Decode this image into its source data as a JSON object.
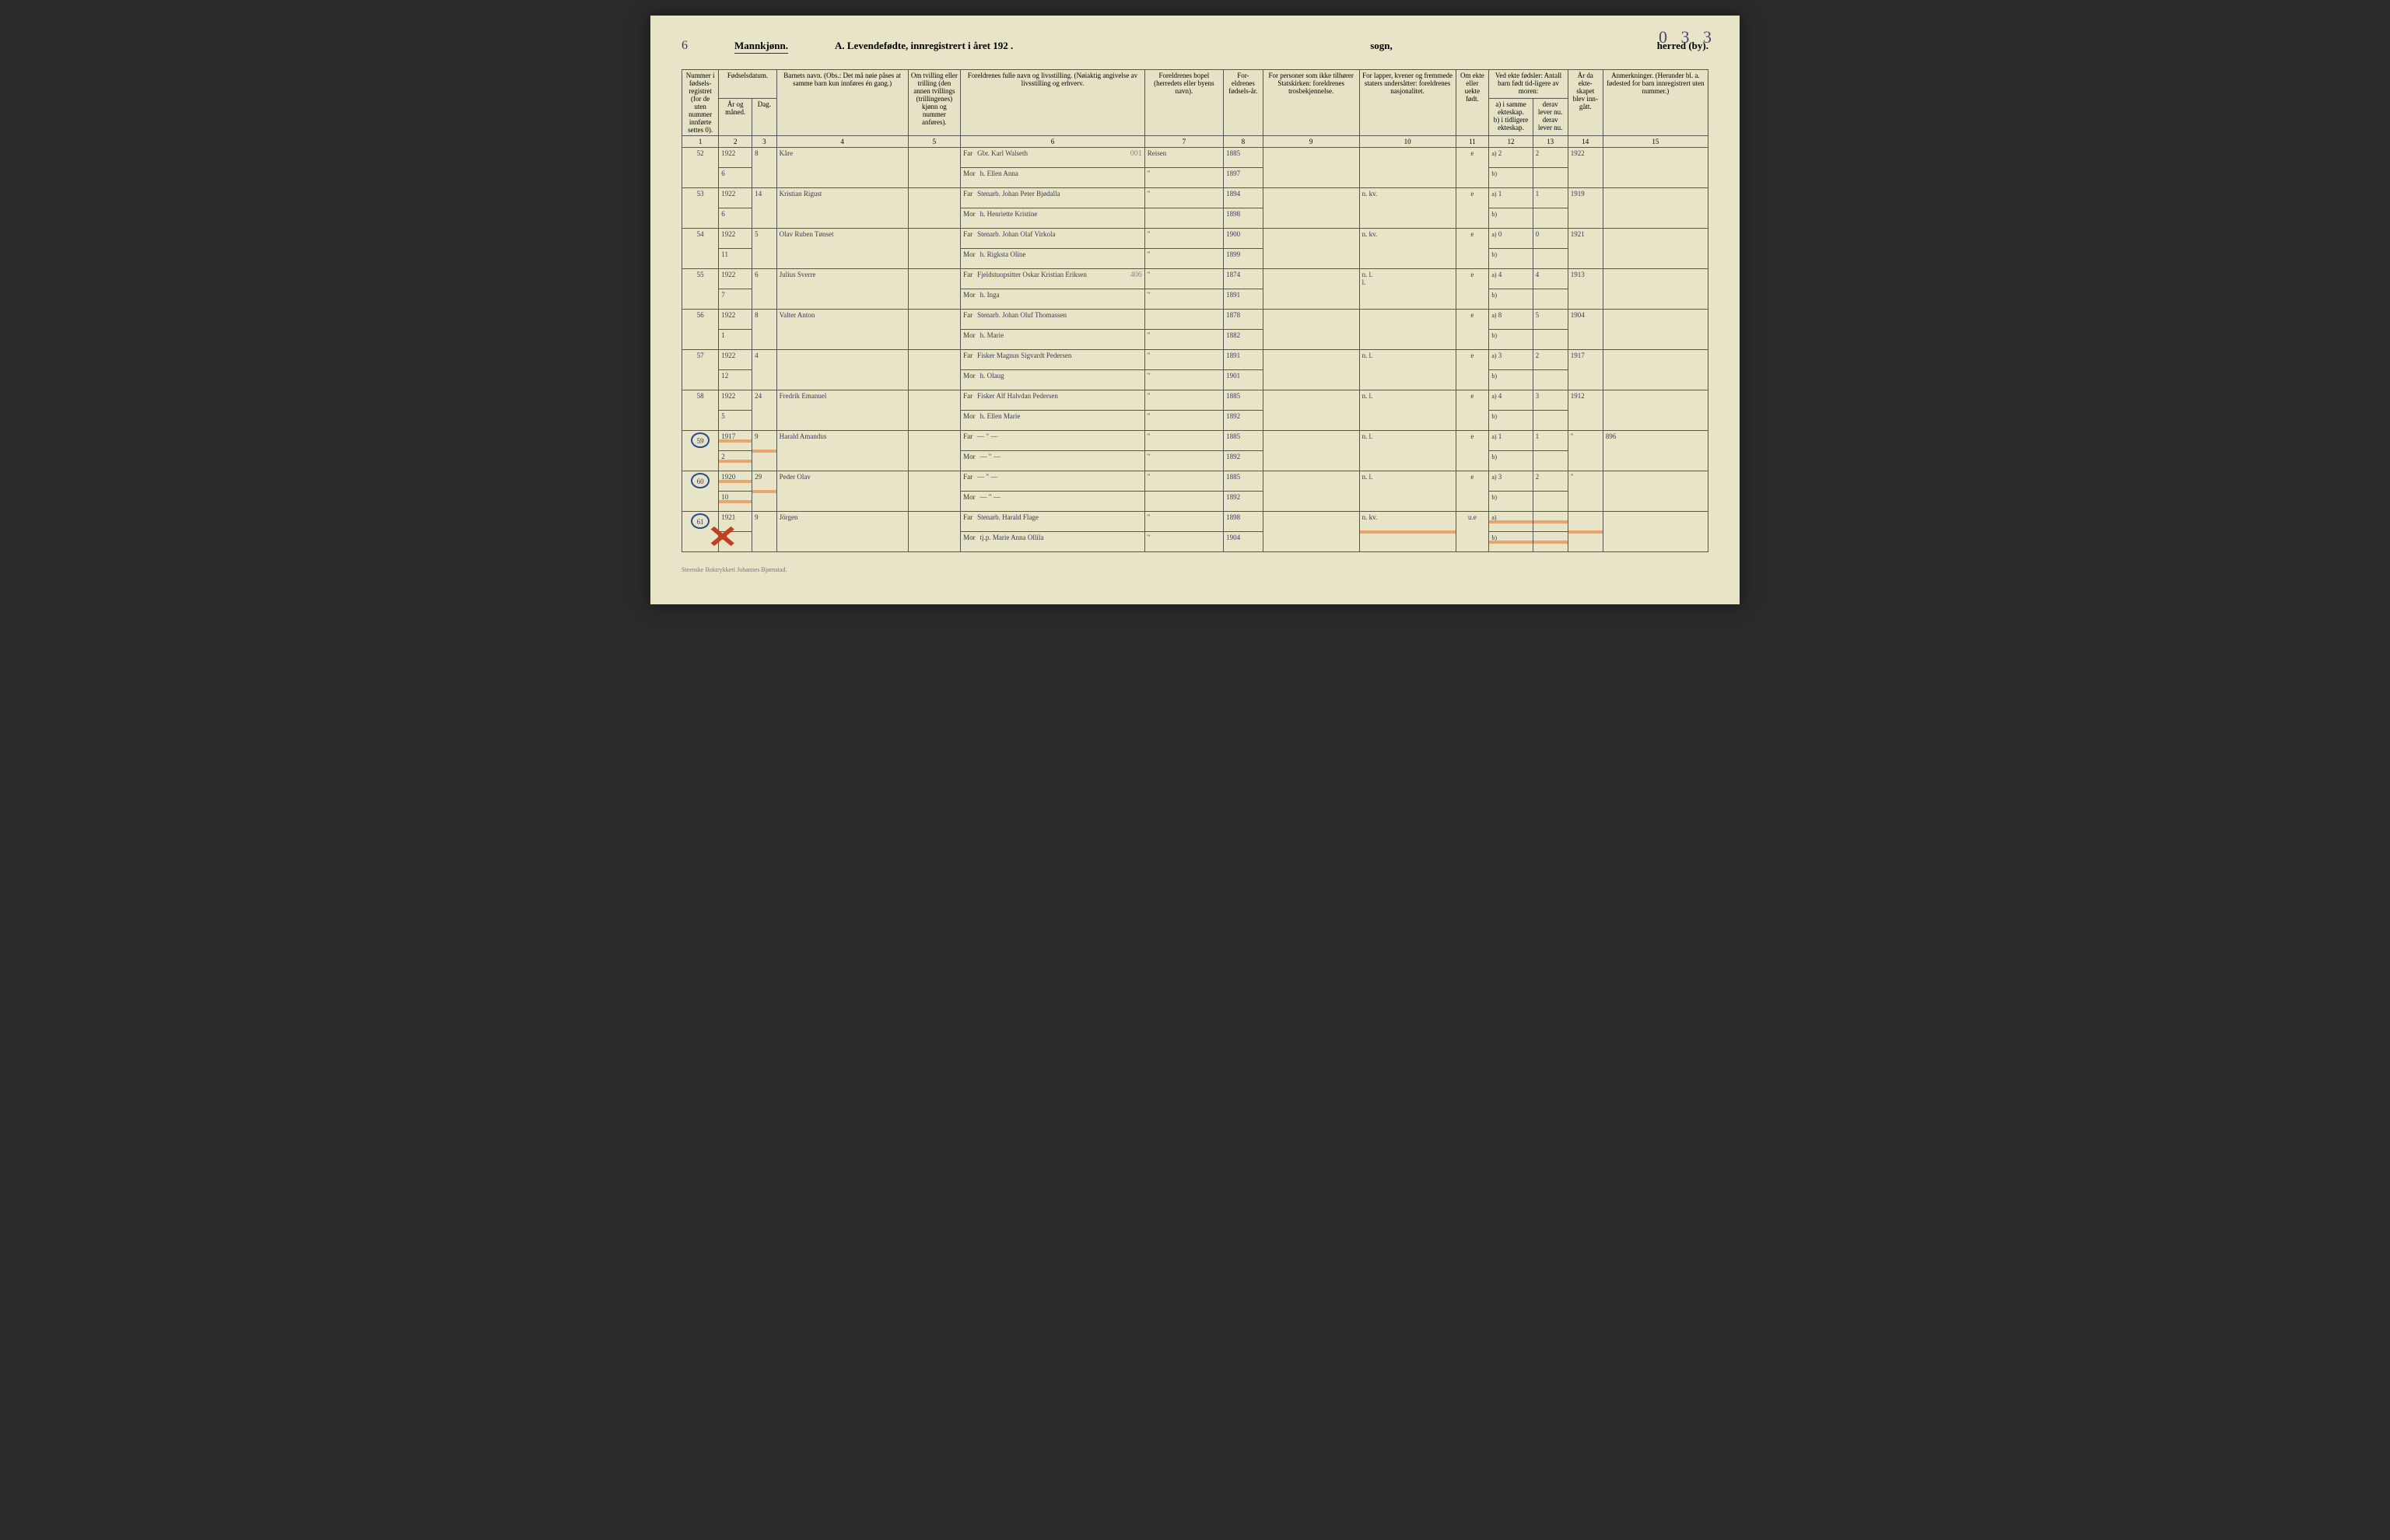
{
  "cornerNumber": "0 3 3",
  "leftNum": "6",
  "genderLabel": "Mannkjønn.",
  "mainTitle": "A.  Levendefødte, innregistrert i året 192  .",
  "sognLabel": "sogn,",
  "herredLabel": "herred (by).",
  "footerPrint": "Steenske Boktrykkeri Johannes Bjørnstad.",
  "headers": {
    "c1": "Nummer i fødsels-registret (for de uten nummer innførte settes 0).",
    "c2top": "Fødselsdatum.",
    "c2a": "År og måned.",
    "c2b": "Dag.",
    "c4": "Barnets navn.\n(Obs.: Det må nøie påses at samme barn kun innføres én gang.)",
    "c5": "Om tvilling eller trilling (den annen tvillings (trillingenes) kjønn og nummer anføres).",
    "c6": "Foreldrenes fulle navn og livsstilling.\n(Nøiaktig angivelse av livsstilling og erhverv.",
    "c7": "Foreldrenes bopel (herredets eller byens navn).",
    "c8": "For-eldrenes fødsels-år.",
    "c9": "For personer som ikke tilhører Statskirken: foreldrenes trosbekjennelse.",
    "c10": "For lapper, kvener og fremmede staters undersåtter: foreldrenes nasjonalitet.",
    "c11": "Om ekte eller uekte født.",
    "c12top": "Ved ekte fødsler: Antall barn født tid-ligere av moren:",
    "c12a": "a) i samme ekteskap.",
    "c12b": "b) i tidligere ekteskap.",
    "c13a": "derav lever nu.",
    "c13b": "derav lever nu.",
    "c14": "År da ekte-skapet blev inn-gått.",
    "c15": "Anmerkninger.\n(Herunder bl. a. fødested for barn innregistrert uten nummer.)"
  },
  "colNums": [
    "1",
    "2",
    "3",
    "4",
    "5",
    "6",
    "7",
    "8",
    "9",
    "10",
    "11",
    "12",
    "13",
    "14",
    "15"
  ],
  "farLabel": "Far",
  "morLabel": "Mor",
  "aLabel": "a)",
  "bLabel": "b)",
  "rows": [
    {
      "num": "52",
      "ym": "1922\n6",
      "day": "8",
      "child": "Kåre",
      "far": "Gbr. Karl Walseth",
      "mor": "h. Ellen Anna",
      "bopel": "Reisen",
      "bopel2": "\"",
      "farYear": "1885",
      "morYear": "1897",
      "c9": "",
      "c10": "",
      "ekte": "e",
      "a": "2",
      "a2": "2",
      "b": "",
      "year": "1922",
      "note": "",
      "c6note": "001"
    },
    {
      "num": "53",
      "ym": "1922\n6",
      "day": "14",
      "child": "Kristian Rigust",
      "far": "Stenarb. Johan Peter Bjødalla",
      "mor": "h. Henriette Kristine",
      "bopel": "\"",
      "bopel2": "",
      "farYear": "1894",
      "morYear": "1898",
      "c9": "",
      "c10": "n. kv.",
      "ekte": "e",
      "a": "1",
      "a2": "1",
      "b": "",
      "year": "1919",
      "note": ""
    },
    {
      "num": "54",
      "ym": "1922\n11",
      "day": "5",
      "child": "Olav Ruben Tønset",
      "far": "Stenarb. Johan Olaf Virkola",
      "mor": "h. Rigksta Oline",
      "bopel": "\"",
      "bopel2": "\"",
      "farYear": "1900",
      "morYear": "1899",
      "c9": "",
      "c10": "n. kv.",
      "ekte": "e",
      "a": "0",
      "a2": "0",
      "b": "",
      "year": "1921",
      "note": ""
    },
    {
      "num": "55",
      "ym": "1922\n7",
      "day": "6",
      "child": "Julius Sverre",
      "far": "Fjeldstuopsitter Oskar Kristian Eriksen",
      "mor": "h. Inga",
      "bopel": "\"",
      "bopel2": "\"",
      "farYear": "1874",
      "morYear": "1891",
      "c9": "",
      "c10": "n. l.\nl.",
      "ekte": "e",
      "a": "4",
      "a2": "4",
      "b": "",
      "year": "1913",
      "note": "",
      "c6note": "406"
    },
    {
      "num": "56",
      "ym": "1922\n1",
      "day": "8",
      "child": "Valter Anton",
      "far": "Stenarb. Johan Oluf Thomassen",
      "mor": "h. Marie",
      "bopel": "",
      "bopel2": "\"",
      "farYear": "1878",
      "morYear": "1882",
      "c9": "",
      "c10": "",
      "ekte": "e",
      "a": "8",
      "a2": "5",
      "b": "",
      "year": "1904",
      "note": ""
    },
    {
      "num": "57",
      "ym": "1922\n12",
      "day": "4",
      "child": "",
      "far": "Fisker Magnus Sigvardt Pedersen",
      "mor": "h. Olaug",
      "bopel": "\"",
      "bopel2": "\"",
      "farYear": "1891",
      "morYear": "1901",
      "c9": "",
      "c10": "n. l.",
      "ekte": "e",
      "a": "3",
      "a2": "2",
      "b": "",
      "year": "1917",
      "note": ""
    },
    {
      "num": "58",
      "ym": "1922\n5",
      "day": "24",
      "child": "Fredrik Emanuel",
      "far": "Fisker Alf Halvdan Pedersen",
      "mor": "h. Ellen Marie",
      "bopel": "\"",
      "bopel2": "\"",
      "farYear": "1885",
      "morYear": "1892",
      "c9": "",
      "c10": "n. l.",
      "ekte": "e",
      "a": "4",
      "a2": "3",
      "b": "",
      "year": "1912",
      "note": ""
    },
    {
      "num": "59",
      "ym": "1917\n2",
      "day": "9",
      "child": "Harald Amandus",
      "far": "— \" —",
      "mor": "— \" —",
      "bopel": "\"",
      "bopel2": "\"",
      "farYear": "1885",
      "morYear": "1892",
      "c9": "",
      "c10": "n. l.",
      "ekte": "e",
      "a": "1",
      "a2": "1",
      "b": "",
      "year": "\"",
      "note": "896",
      "circled": true,
      "strike": true
    },
    {
      "num": "60",
      "ym": "1920\n10",
      "day": "29",
      "child": "Peder Olav",
      "far": "— \" —",
      "mor": "— \" —",
      "bopel": "\"",
      "bopel2": "",
      "farYear": "1885",
      "morYear": "1892",
      "c9": "",
      "c10": "n. l.",
      "ekte": "e",
      "a": "3",
      "a2": "2",
      "b": "",
      "year": "\"",
      "note": "",
      "circled": true,
      "strike": true
    },
    {
      "num": "61",
      "ym": "1921\n11",
      "day": "9",
      "child": "Jörgen",
      "far": "Stenarb. Harald Flage",
      "mor": "tj.p. Marie Anna Ollila",
      "bopel": "\"",
      "bopel2": "\"",
      "farYear": "1898",
      "morYear": "1904",
      "c9": "",
      "c10": "n. kv.",
      "ekte": "u.e",
      "a": "",
      "a2": "",
      "b": "",
      "year": "",
      "note": "",
      "circled": true,
      "redx": true,
      "orangeLine": true
    }
  ],
  "colWidths": {
    "c1": "42",
    "c2": "38",
    "c3": "28",
    "c4": "150",
    "c5": "60",
    "c6": "210",
    "c7": "90",
    "c8": "45",
    "c9": "110",
    "c10": "110",
    "c11": "38",
    "c12": "50",
    "c13": "40",
    "c14": "40",
    "c15": "120"
  }
}
